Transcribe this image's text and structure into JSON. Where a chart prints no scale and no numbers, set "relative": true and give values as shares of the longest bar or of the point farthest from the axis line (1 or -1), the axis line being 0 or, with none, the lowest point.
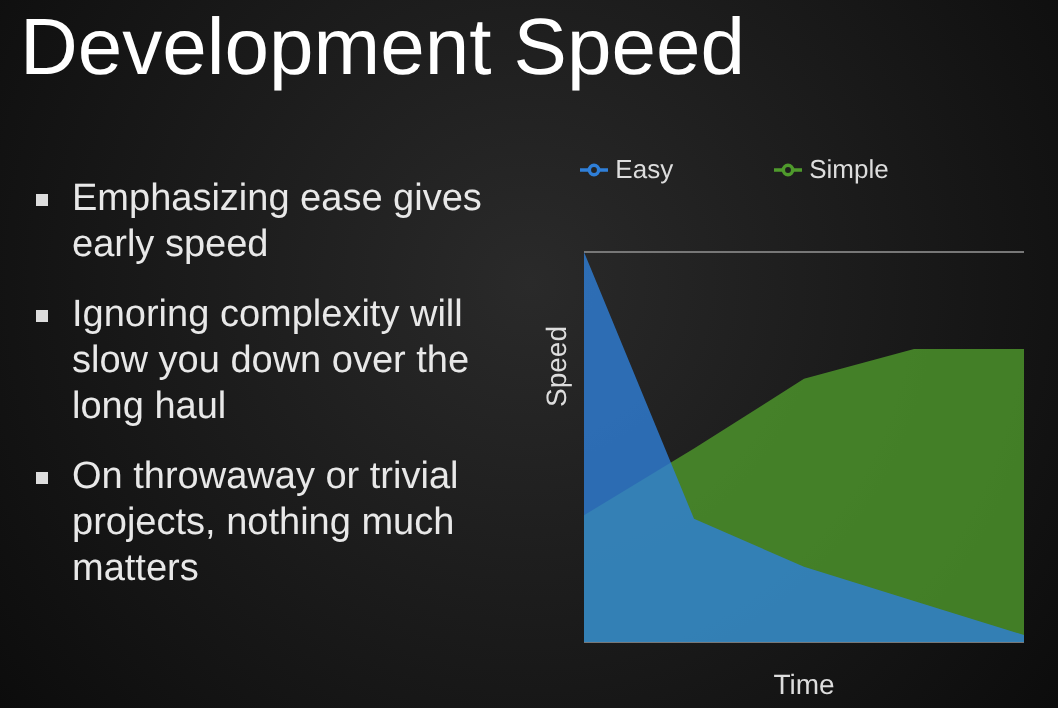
{
  "chart_data": {
    "type": "area",
    "title": "Development Speed",
    "annotations": [
      "Emphasizing ease gives early speed",
      "Ignoring complexity will slow you down over the long haul",
      "On throwaway or trivial projects, nothing much matters"
    ],
    "xlabel": "Time",
    "ylabel": "Speed",
    "relative": true,
    "categories": [
      null,
      null,
      null,
      null,
      null
    ],
    "series": [
      {
        "name": "Simple",
        "color": "#4f9a2c",
        "values": [
          0.325,
          0.496,
          0.675,
          0.751,
          0.751
        ]
      },
      {
        "name": "Easy",
        "color": "#2f7fd8",
        "values": [
          1,
          0.316,
          0.193,
          0.105,
          0.018
        ]
      }
    ],
    "grid": "y",
    "legend": "top"
  }
}
